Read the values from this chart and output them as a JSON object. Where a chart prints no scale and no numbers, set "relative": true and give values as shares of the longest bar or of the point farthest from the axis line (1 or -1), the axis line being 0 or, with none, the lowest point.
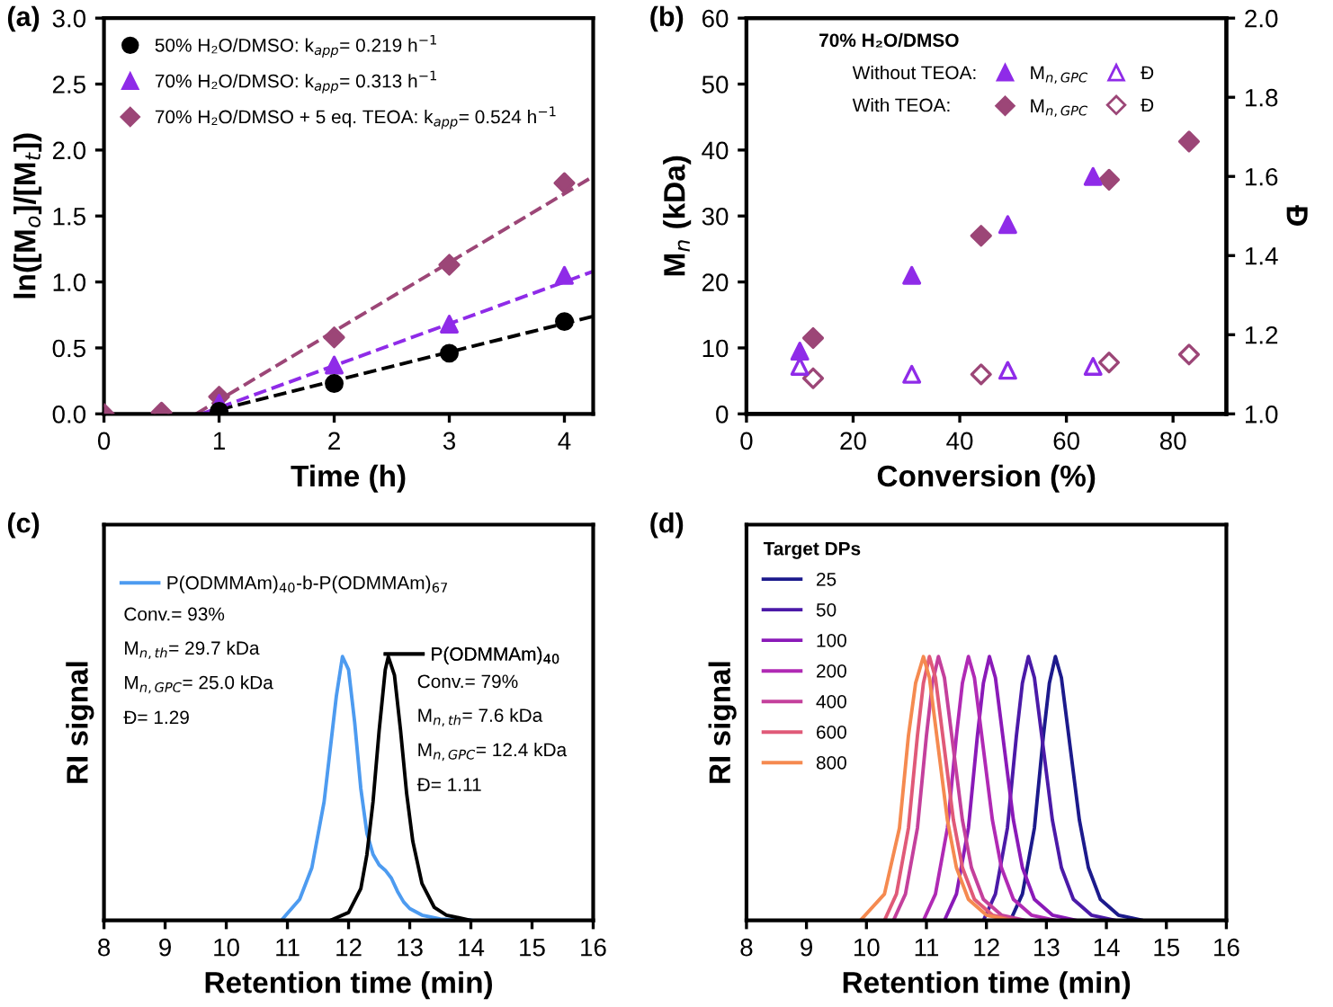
{
  "chart_data": [
    {
      "type": "scatter",
      "title": "(a)",
      "xlabel": "Time (h)",
      "ylabel": "ln([M$_{o}$]/[M$_{t}$])",
      "xlim": [
        0,
        4.25
      ],
      "xticks": [
        0,
        1,
        2,
        3,
        4
      ],
      "ylim": [
        0,
        3
      ],
      "yticks": [
        {
          "value": 0,
          "label": "0.0"
        },
        {
          "value": 0.5,
          "label": "0.5"
        },
        {
          "value": 1,
          "label": "1.0"
        },
        {
          "value": 1.5,
          "label": "1.5"
        },
        {
          "value": 2,
          "label": "2.0"
        },
        {
          "value": 2.5,
          "label": "2.5"
        },
        {
          "value": 3,
          "label": "3.0"
        }
      ],
      "legend": "top left",
      "series": [
        {
          "name": "50% H₂O/DMSO: k$_{app}$= 0.219 h$^{−1}$",
          "color": "#000000",
          "marker": "circle",
          "x": [
            1,
            2,
            3,
            4
          ],
          "values": [
            0.02,
            0.23,
            0.46,
            0.7
          ]
        },
        {
          "name": "70% H₂O/DMSO: k$_{app}$= 0.313 h$^{−1}$",
          "color": "#8f2be8",
          "marker": "triangle",
          "x": [
            1,
            2,
            3,
            4
          ],
          "values": [
            0.08,
            0.37,
            0.68,
            1.05
          ]
        },
        {
          "name": "70% H₂O/DMSO + 5 eq. TEOA: k$_{app}$= 0.524 h$^{−1}$",
          "color": "#9c4677",
          "marker": "diamond",
          "x": [
            0,
            0.5,
            1,
            2,
            3,
            4
          ],
          "values": [
            0,
            0.01,
            0.13,
            0.58,
            1.13,
            1.75
          ]
        },
        {
          "type": "line",
          "line_style": "dashed",
          "color": "#000000",
          "x": [
            0.85,
            4.25
          ],
          "values": [
            0,
            0.74
          ]
        },
        {
          "type": "line",
          "line_style": "dashed",
          "color": "#8f2be8",
          "x": [
            0.85,
            4.25
          ],
          "values": [
            0,
            1.08
          ]
        },
        {
          "type": "line",
          "line_style": "dashed",
          "color": "#9c4677",
          "x": [
            0.8,
            4.25
          ],
          "values": [
            0,
            1.8
          ]
        }
      ]
    },
    {
      "type": "scatter",
      "title": "(b)",
      "xlabel": "Conversion (%)",
      "ylabel": "M$_{n}$ (kDa)",
      "y2label": "Đ",
      "legend_title": "70% H₂O/DMSO",
      "annotations": [
        "Without TEOA:",
        "With TEOA:"
      ],
      "xlim": [
        0,
        90
      ],
      "xticks": [
        0,
        20,
        40,
        60,
        80
      ],
      "ylim": [
        0,
        60
      ],
      "yticks": [
        0,
        10,
        20,
        30,
        40,
        50,
        60
      ],
      "y2lim": [
        1,
        2
      ],
      "y2ticks": [
        {
          "value": 1,
          "label": "1.0"
        },
        {
          "value": 1.2,
          "label": "1.2"
        },
        {
          "value": 1.4,
          "label": "1.4"
        },
        {
          "value": 1.6,
          "label": "1.6"
        },
        {
          "value": 1.8,
          "label": "1.8"
        },
        {
          "value": 2,
          "label": "2.0"
        }
      ],
      "legend": "top",
      "series": [
        {
          "name": "M$_{n,GPC}$",
          "color": "#8f2be8",
          "marker": "triangle",
          "x": [
            10,
            31,
            49,
            65
          ],
          "values": [
            9.5,
            21,
            28.7,
            36
          ]
        },
        {
          "name": "Đ",
          "color": "#8f2be8",
          "marker": "triangle",
          "axis": "y2",
          "x": [
            10,
            31,
            49,
            65
          ],
          "values": [
            1.12,
            1.1,
            1.11,
            1.12
          ]
        },
        {
          "name": "M$_{n,GPC}$",
          "color": "#9c4677",
          "marker": "diamond",
          "x": [
            12.5,
            44,
            68,
            83
          ],
          "values": [
            11.5,
            27,
            35.5,
            41.3
          ]
        },
        {
          "name": "Đ",
          "color": "#9c4677",
          "marker": "diamond",
          "axis": "y2",
          "x": [
            12.5,
            44,
            68,
            83
          ],
          "values": [
            1.09,
            1.1,
            1.13,
            1.15
          ]
        }
      ]
    },
    {
      "type": "line",
      "title": "(c)",
      "xlabel": "Retention time (min)",
      "ylabel": "RI signal",
      "relative": true,
      "tick_labels": "x",
      "xlim": [
        8,
        16
      ],
      "xticks": [
        8,
        9,
        10,
        11,
        12,
        13,
        14,
        15,
        16
      ],
      "legend": "top",
      "annotations": [
        "Conv.= 93%",
        "M$_{n,th}$= 29.7 kDa",
        "M$_{n,GPC}$= 25.0 kDa",
        "Đ= 1.29",
        "Conv.= 79%",
        "M$_{n,th}$= 7.6 kDa",
        "M$_{n,GPC}$= 12.4 kDa",
        "Đ= 1.11"
      ],
      "series": [
        {
          "name": "P(ODMMAm)$_{40}$-b-P(ODMMAm)$_{67}$",
          "color": "#4d9bf0",
          "x": [
            10.9,
            11.2,
            11.4,
            11.6,
            11.7,
            11.8,
            11.9,
            12.0,
            12.1,
            12.2,
            12.3,
            12.4,
            12.5,
            12.6,
            12.7,
            12.8,
            12.9,
            13.0,
            13.2,
            13.5,
            14.0
          ],
          "values": [
            0,
            0.08,
            0.2,
            0.45,
            0.65,
            0.85,
            1,
            0.95,
            0.75,
            0.5,
            0.33,
            0.25,
            0.21,
            0.19,
            0.16,
            0.11,
            0.07,
            0.045,
            0.02,
            0.005,
            0
          ]
        },
        {
          "name": "P(ODMMAm)$_{40}$",
          "color": "#000000",
          "x": [
            11.7,
            12.0,
            12.2,
            12.3,
            12.4,
            12.5,
            12.6,
            12.65,
            12.75,
            12.85,
            12.95,
            13.05,
            13.2,
            13.4,
            13.6,
            14.0
          ],
          "values": [
            0,
            0.03,
            0.12,
            0.25,
            0.45,
            0.72,
            0.95,
            1,
            0.93,
            0.72,
            0.48,
            0.3,
            0.14,
            0.05,
            0.02,
            0
          ]
        }
      ]
    },
    {
      "type": "line",
      "title": "(d)",
      "xlabel": "Retention time (min)",
      "ylabel": "RI signal",
      "relative": true,
      "tick_labels": "x",
      "xlim": [
        8,
        16
      ],
      "xticks": [
        8,
        9,
        10,
        11,
        12,
        13,
        14,
        15,
        16
      ],
      "legend": "top left",
      "legend_title": "Target DPs",
      "series": [
        {
          "name": "25",
          "color": "#1c1a8c",
          "x": [
            12.4,
            12.6,
            12.8,
            12.95,
            13.05,
            13.15,
            13.25,
            13.4,
            13.55,
            13.7,
            13.9,
            14.2,
            14.6
          ],
          "values": [
            0,
            0.1,
            0.35,
            0.7,
            0.9,
            1,
            0.92,
            0.65,
            0.38,
            0.2,
            0.08,
            0.02,
            0
          ]
        },
        {
          "name": "50",
          "color": "#4b1aa8",
          "x": [
            11.95,
            12.15,
            12.35,
            12.5,
            12.6,
            12.7,
            12.8,
            12.95,
            13.1,
            13.25,
            13.45,
            13.75,
            14.15
          ],
          "values": [
            0,
            0.1,
            0.35,
            0.7,
            0.9,
            1,
            0.92,
            0.65,
            0.38,
            0.2,
            0.08,
            0.02,
            0
          ]
        },
        {
          "name": "100",
          "color": "#8a1ab8",
          "x": [
            11.3,
            11.5,
            11.7,
            11.85,
            11.95,
            12.05,
            12.15,
            12.3,
            12.45,
            12.6,
            12.8,
            13.1,
            13.5
          ],
          "values": [
            0,
            0.1,
            0.35,
            0.7,
            0.9,
            1,
            0.92,
            0.65,
            0.38,
            0.2,
            0.08,
            0.02,
            0
          ]
        },
        {
          "name": "200",
          "color": "#b02ab4",
          "x": [
            10.95,
            11.15,
            11.35,
            11.5,
            11.6,
            11.7,
            11.8,
            11.95,
            12.1,
            12.25,
            12.45,
            12.75,
            13.15
          ],
          "values": [
            0,
            0.1,
            0.35,
            0.7,
            0.9,
            1,
            0.92,
            0.65,
            0.38,
            0.2,
            0.08,
            0.02,
            0
          ]
        },
        {
          "name": "400",
          "color": "#c4409c",
          "x": [
            10.45,
            10.65,
            10.85,
            11.0,
            11.1,
            11.2,
            11.3,
            11.45,
            11.6,
            11.75,
            11.95,
            12.25,
            12.65
          ],
          "values": [
            0,
            0.1,
            0.35,
            0.7,
            0.9,
            1,
            0.92,
            0.65,
            0.38,
            0.2,
            0.08,
            0.02,
            0
          ]
        },
        {
          "name": "600",
          "color": "#e05a78",
          "x": [
            10.3,
            10.5,
            10.7,
            10.85,
            10.95,
            11.05,
            11.15,
            11.3,
            11.45,
            11.6,
            11.8,
            12.1,
            12.5
          ],
          "values": [
            0,
            0.1,
            0.35,
            0.7,
            0.9,
            1,
            0.92,
            0.65,
            0.38,
            0.2,
            0.08,
            0.02,
            0
          ]
        },
        {
          "name": "800",
          "color": "#f58a50",
          "x": [
            9.9,
            10.3,
            10.55,
            10.7,
            10.82,
            10.95,
            11.05,
            11.2,
            11.35,
            11.5,
            11.7,
            12.0,
            12.4
          ],
          "values": [
            0,
            0.1,
            0.35,
            0.7,
            0.9,
            1,
            0.92,
            0.65,
            0.38,
            0.2,
            0.08,
            0.02,
            0
          ]
        }
      ]
    }
  ]
}
